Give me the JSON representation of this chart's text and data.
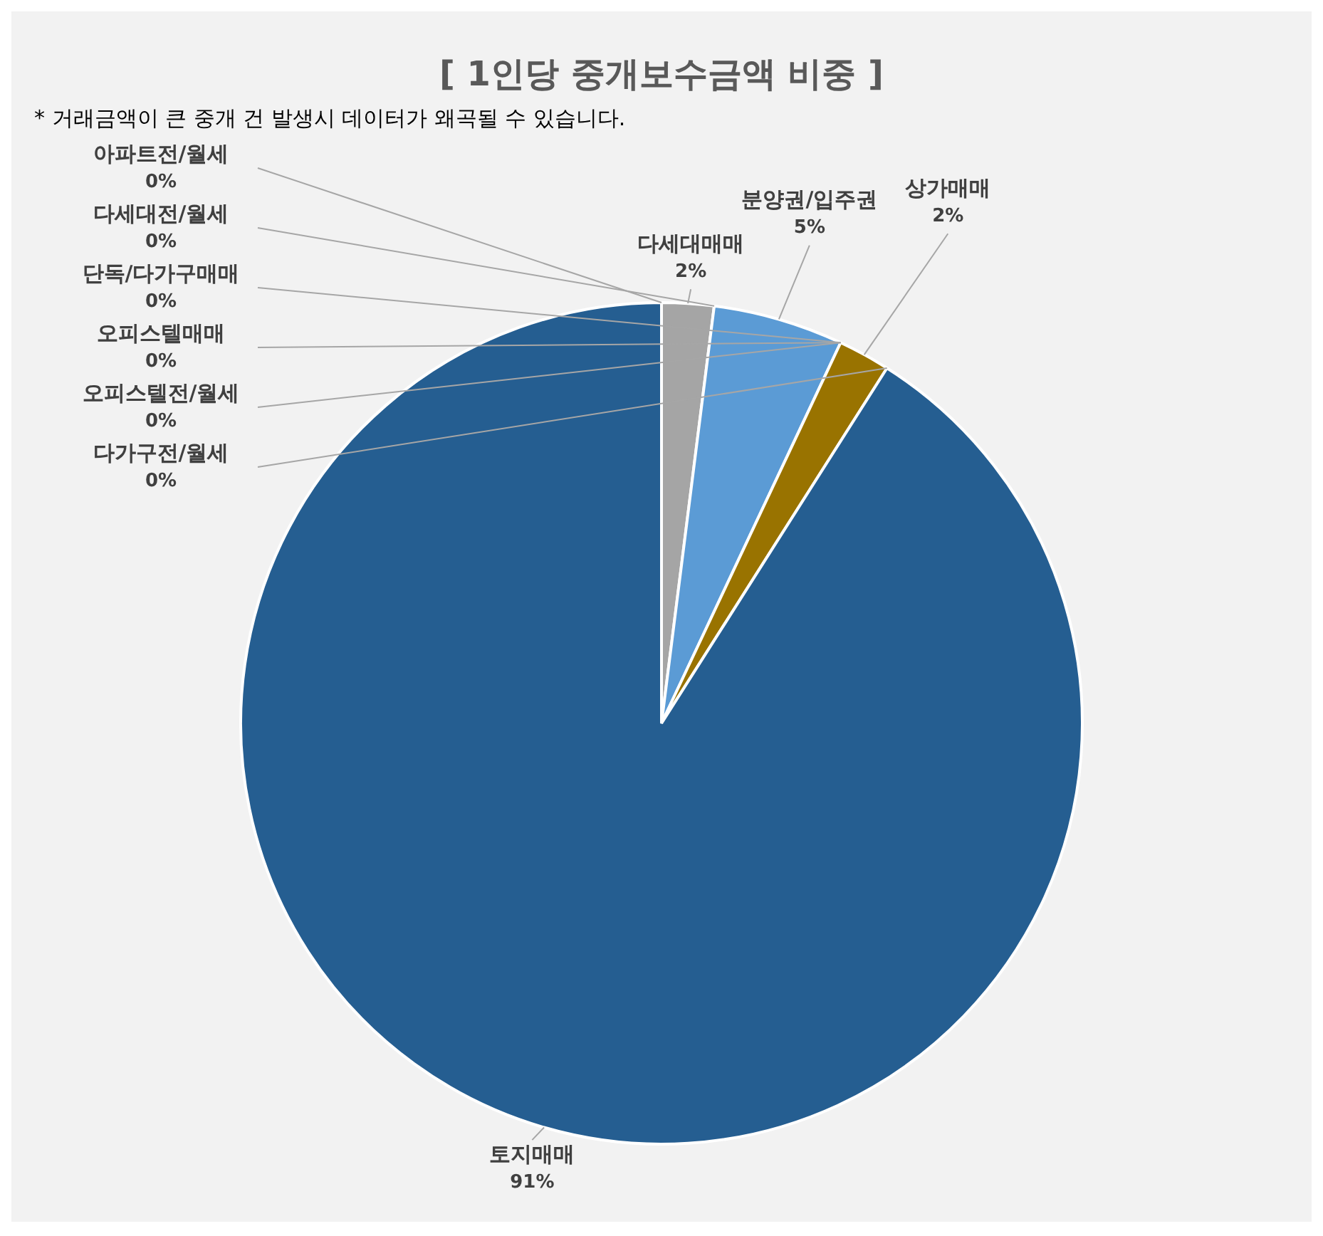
{
  "chart_data": {
    "type": "pie",
    "title": "[ 1인당 중개보수금액 비중 ]",
    "annotations": [
      "* 거래금액이 큰 중개 건 발생시 데이터가 왜곡될 수 있습니다."
    ],
    "categories": [
      "아파트전/월세",
      "다세대매매",
      "다세대전/월세",
      "분양권/입주권",
      "단독/다가구매매",
      "오피스텔매매",
      "오피스텔전/월세",
      "상가매매",
      "다가구전/월세",
      "토지매매"
    ],
    "values": [
      0,
      2,
      0,
      5,
      0,
      0,
      0,
      2,
      0,
      91
    ],
    "value_labels": [
      "0%",
      "2%",
      "0%",
      "5%",
      "0%",
      "0%",
      "0%",
      "2%",
      "0%",
      "91%"
    ],
    "colors": [
      "#ed7d31",
      "#a5a5a5",
      "#ffc000",
      "#5b9bd5",
      "#70ad47",
      "#264478",
      "#9e480e",
      "#997300",
      "#636363",
      "#255e91"
    ],
    "legend": false
  }
}
